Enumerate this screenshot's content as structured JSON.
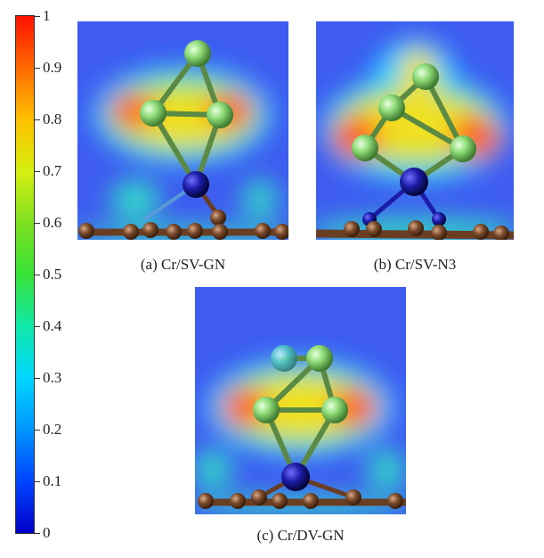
{
  "colorbar": {
    "ticks": [
      "0",
      "0.1",
      "0.2",
      "0.3",
      "0.4",
      "0.5",
      "0.6",
      "0.7",
      "0.8",
      "0.9",
      "1"
    ]
  },
  "panels": [
    {
      "id": "a",
      "caption": "(a) Cr/SV-GN"
    },
    {
      "id": "b",
      "caption": "(b) Cr/SV-N3"
    },
    {
      "id": "c",
      "caption": "(c) Cr/DV-GN"
    }
  ],
  "colors": {
    "carbon": "#7a4a2a",
    "chromium": "#1c1ca8",
    "nitrogen": "#2222cc",
    "cluster": "#8fdc78",
    "background_field": "#3e5cf0"
  }
}
